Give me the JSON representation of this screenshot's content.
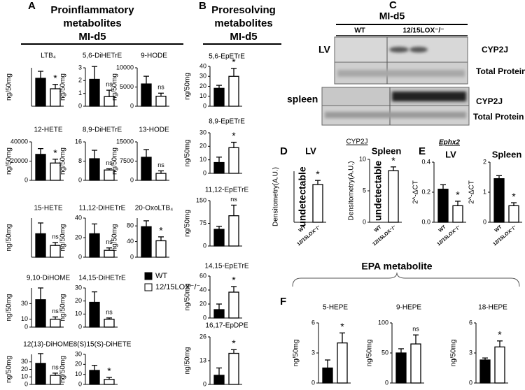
{
  "header": {
    "a": {
      "letter": "A",
      "title": "Proinflammatory",
      "subtitle": "metabolites",
      "group": "MI-d5"
    },
    "b": {
      "letter": "B",
      "title": "Proresolving",
      "subtitle": "metabolites",
      "group": "MI-d5"
    },
    "c": {
      "letter": "C",
      "group": "MI-d5",
      "lanes": [
        "WT",
        "12/15LOX⁻/⁻"
      ],
      "tissue1": "LV",
      "tissue2": "spleen",
      "band1": "CYP2J",
      "load1": "Total Protein",
      "band2": "CYP2J",
      "load2": "Total Protein"
    },
    "d": {
      "letter": "D",
      "gene": "CYP2J"
    },
    "e": {
      "letter": "E",
      "gene": "Ephx2"
    },
    "f": {
      "letter": "F",
      "title": "EPA metabolite"
    }
  },
  "legend": {
    "items": [
      {
        "name": "WT",
        "color": "#000000"
      },
      {
        "name": "12/15LOX⁻/⁻",
        "color": "#ffffff"
      }
    ]
  },
  "chart_data": [
    {
      "type": "bar",
      "title": "LTB₄",
      "y_label": "ng/50mg",
      "values": [
        160,
        100
      ],
      "errors": [
        40,
        25
      ],
      "annotation": "*",
      "ylim": [
        0,
        220
      ],
      "yticks": []
    },
    {
      "type": "bar",
      "title": "5,6-DiHETrE",
      "y_label": "ng/50mg",
      "values": [
        2.1,
        0.75
      ],
      "errors": [
        1.0,
        0.5
      ],
      "annotation": "ns",
      "ylim": [
        0,
        3
      ],
      "yticks": [
        0,
        1,
        2,
        3
      ]
    },
    {
      "type": "bar",
      "title": "9-HODE",
      "y_label": "ng/50mg",
      "values": [
        5800,
        2600
      ],
      "errors": [
        2000,
        800
      ],
      "annotation": "ns",
      "ylim": [
        0,
        10000
      ],
      "yticks": [
        0,
        5000,
        10000
      ]
    },
    {
      "type": "bar",
      "title": "12-HETE",
      "y_label": "ng/50mg",
      "values": [
        27000,
        18000
      ],
      "errors": [
        6000,
        4000
      ],
      "annotation": "*",
      "ylim": [
        0,
        40000
      ],
      "yticks": [
        0,
        20000,
        40000
      ]
    },
    {
      "type": "bar",
      "title": "8,9-DiHETrE",
      "y_label": "ng/50mg",
      "values": [
        9,
        4.3
      ],
      "errors": [
        3.5,
        0.5
      ],
      "annotation": "ns",
      "ylim": [
        0,
        16
      ],
      "yticks": [
        0,
        8,
        16
      ]
    },
    {
      "type": "bar",
      "title": "13-HODE",
      "y_label": "ng/50mg",
      "values": [
        9000,
        2700
      ],
      "errors": [
        3000,
        1000
      ],
      "annotation": "ns",
      "ylim": [
        0,
        15000
      ],
      "yticks": [
        0,
        7500,
        15000
      ]
    },
    {
      "type": "bar",
      "title": "15-HETE",
      "y_label": "ng/50mg",
      "values": [
        240,
        120
      ],
      "errors": [
        110,
        30
      ],
      "annotation": "ns",
      "ylim": [
        0,
        400
      ],
      "yticks": []
    },
    {
      "type": "bar",
      "title": "11,12-DiHETrE",
      "y_label": "ng/50mg",
      "values": [
        24,
        7
      ],
      "errors": [
        10,
        2.5
      ],
      "annotation": "ns",
      "ylim": [
        0,
        40
      ],
      "yticks": [
        0,
        20,
        40
      ]
    },
    {
      "type": "bar",
      "title": "20-OxoLTB₄",
      "y_label": "ng/50mg",
      "values": [
        78,
        42
      ],
      "errors": [
        15,
        10
      ],
      "annotation": "*",
      "ylim": [
        0,
        100
      ],
      "yticks": [
        0,
        40,
        80
      ]
    },
    {
      "type": "bar",
      "title": "9,10-DiHOME",
      "y_label": "ng/50mg",
      "values": [
        35,
        10
      ],
      "errors": [
        15,
        3
      ],
      "annotation": "ns",
      "ylim": [
        0,
        50
      ],
      "yticks": [
        0,
        10,
        30
      ]
    },
    {
      "type": "bar",
      "title": "14,15-DiHETrE",
      "y_label": "ng/50mg",
      "values": [
        19,
        6
      ],
      "errors": [
        8,
        1
      ],
      "annotation": "ns",
      "ylim": [
        0,
        30
      ],
      "yticks": [
        0,
        10,
        20,
        30
      ]
    },
    {
      "type": "bar",
      "title": "12(13)-DiHOME",
      "y_label": "ng/50mg",
      "values": [
        28,
        12
      ],
      "errors": [
        13,
        3
      ],
      "annotation": "ns",
      "ylim": [
        0,
        40
      ],
      "yticks": [
        0,
        10,
        20,
        30
      ]
    },
    {
      "type": "bar",
      "title": "8(S)15(S)-DiHETE",
      "y_label": "ng/50mg",
      "values": [
        14,
        5
      ],
      "errors": [
        5,
        2
      ],
      "annotation": "*",
      "ylim": [
        0,
        30
      ],
      "yticks": [
        0,
        10,
        20,
        30
      ]
    },
    {
      "type": "bar",
      "title": "5,6-EpETrE",
      "y_label": "ng/50mg",
      "values": [
        18,
        30
      ],
      "errors": [
        3,
        8
      ],
      "annotation": "*",
      "ylim": [
        0,
        40
      ],
      "yticks": [
        0,
        10,
        20,
        30,
        40
      ]
    },
    {
      "type": "bar",
      "title": "8,9-EpETrE",
      "y_label": "ng/50mg",
      "values": [
        8,
        19
      ],
      "errors": [
        4,
        4
      ],
      "annotation": "*",
      "ylim": [
        0,
        30
      ],
      "yticks": [
        0,
        10,
        20,
        30
      ]
    },
    {
      "type": "bar",
      "title": "11,12-EpETrE",
      "y_label": "ng/50mg",
      "values": [
        55,
        100
      ],
      "errors": [
        10,
        35
      ],
      "annotation": "ns",
      "ylim": [
        0,
        150
      ],
      "yticks": [
        0,
        75,
        150
      ]
    },
    {
      "type": "bar",
      "title": "14,15-EpETrE",
      "y_label": "ng/50mg",
      "values": [
        12,
        37
      ],
      "errors": [
        8,
        8
      ],
      "annotation": "*",
      "ylim": [
        0,
        60
      ],
      "yticks": [
        0,
        20,
        40,
        60
      ]
    },
    {
      "type": "bar",
      "title": "16,17-EpDPE",
      "y_label": "ng/50mg",
      "values": [
        5,
        17
      ],
      "errors": [
        4,
        2
      ],
      "annotation": "*",
      "ylim": [
        0,
        26
      ],
      "yticks": [
        0,
        13,
        26
      ]
    },
    {
      "type": "bar",
      "title": "LV",
      "y_label": "Densitometry(A.U.)",
      "categories": [
        "WT",
        "12/15LOX⁻/⁻"
      ],
      "values": [
        null,
        3.7
      ],
      "value_labels": [
        "undetectable",
        null
      ],
      "errors": [
        null,
        0.4
      ],
      "annotation": "*",
      "ylim": [
        0,
        5
      ],
      "yticks": []
    },
    {
      "type": "bar",
      "title": "Spleen",
      "y_label": "Densitometry(A.U.)",
      "categories": [
        "WT",
        "12/15LOX⁻/⁻"
      ],
      "values": [
        null,
        8.2
      ],
      "value_labels": [
        "undetectable",
        null
      ],
      "errors": [
        null,
        0.6
      ],
      "annotation": "*",
      "ylim": [
        0,
        10
      ],
      "yticks": [
        0,
        5,
        10
      ]
    },
    {
      "type": "bar",
      "title": "LV",
      "y_label": "2^-ΔCT",
      "categories": [
        "WT",
        "12/15LOX⁻/⁻"
      ],
      "values": [
        0.22,
        0.11
      ],
      "errors": [
        0.03,
        0.03
      ],
      "annotation": "*",
      "ylim": [
        0,
        0.4
      ],
      "yticks": [
        {
          "value": 0,
          "label": "0.0"
        },
        0.2,
        0.4
      ]
    },
    {
      "type": "bar",
      "title": "Spleen",
      "y_label": "2^-ΔCT",
      "categories": [
        "WT",
        "12/15LOX⁻/⁻"
      ],
      "values": [
        1.45,
        0.55
      ],
      "errors": [
        0.1,
        0.1
      ],
      "annotation": "*",
      "ylim": [
        0,
        2
      ],
      "yticks": [
        0,
        1,
        2
      ]
    },
    {
      "type": "bar",
      "title": "5-HEPE",
      "y_label": "ng/50mg",
      "values": [
        1.5,
        4
      ],
      "errors": [
        0.8,
        1
      ],
      "annotation": "*",
      "ylim": [
        0,
        6
      ],
      "yticks": [
        0,
        3,
        6
      ]
    },
    {
      "type": "bar",
      "title": "9-HEPE",
      "y_label": "ng/50mg",
      "values": [
        50,
        65
      ],
      "errors": [
        7,
        15
      ],
      "annotation": "ns",
      "ylim": [
        0,
        100
      ],
      "yticks": [
        0,
        50,
        100
      ]
    },
    {
      "type": "bar",
      "title": "18-HEPE",
      "y_label": "ng/50mg",
      "values": [
        2.3,
        3.6
      ],
      "errors": [
        0.2,
        0.6
      ],
      "annotation": "*",
      "ylim": [
        0,
        6
      ],
      "yticks": [
        0,
        3,
        6
      ]
    }
  ]
}
